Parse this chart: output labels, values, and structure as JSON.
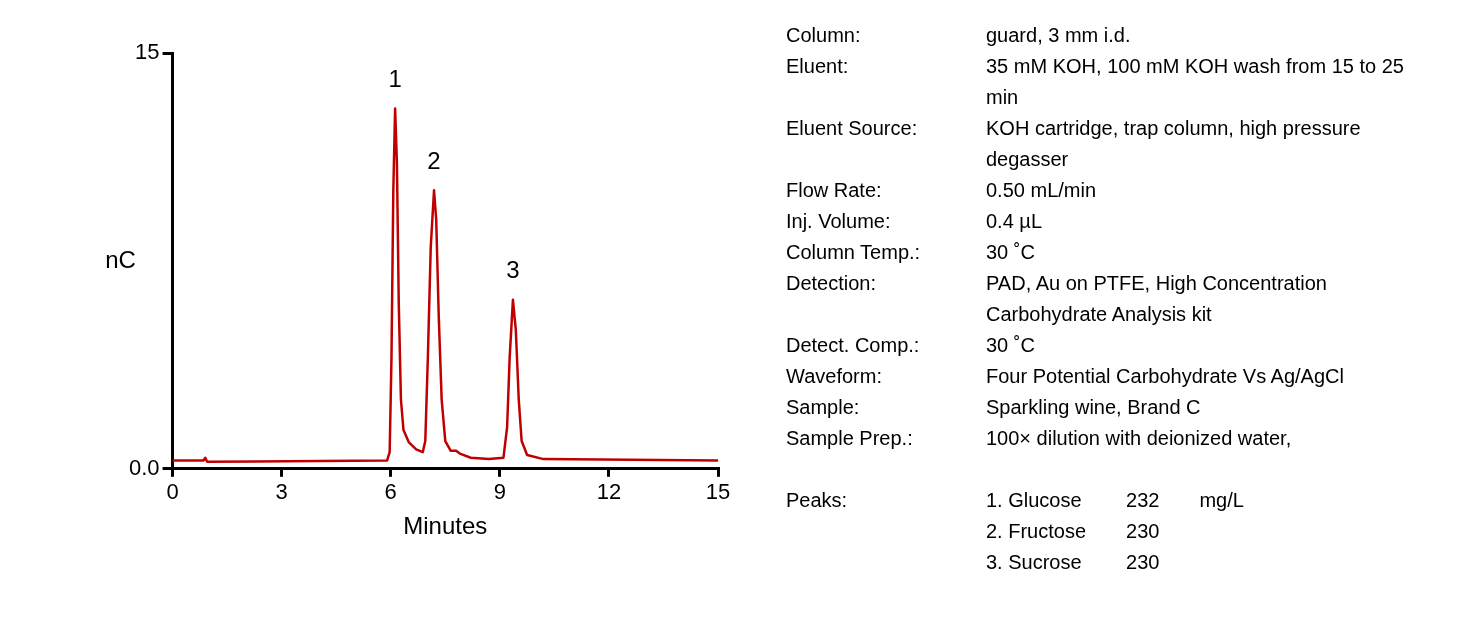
{
  "chart_data": {
    "type": "line",
    "xlabel": "Minutes",
    "ylabel": "nC",
    "xlim": [
      0,
      15
    ],
    "xticks": [
      0,
      3,
      6,
      9,
      12,
      15
    ],
    "ylim": [
      0,
      15
    ],
    "yticks": [
      {
        "value": 0,
        "label": "0.0"
      },
      15
    ],
    "grid": false,
    "legend": false,
    "marker": "none",
    "line_style": "solid",
    "series": [
      {
        "color": "#c00000",
        "x": [
          0,
          0.85,
          0.9,
          0.95,
          5.9,
          5.97,
          6.02,
          6.07,
          6.12,
          6.17,
          6.22,
          6.28,
          6.35,
          6.5,
          6.7,
          6.88,
          6.95,
          7.02,
          7.1,
          7.19,
          7.25,
          7.32,
          7.4,
          7.5,
          7.65,
          7.8,
          7.9,
          8.2,
          8.7,
          9.1,
          9.2,
          9.27,
          9.36,
          9.44,
          9.52,
          9.6,
          9.75,
          10.2,
          15
        ],
        "values": [
          0.3,
          0.3,
          0.4,
          0.25,
          0.3,
          0.6,
          4,
          10,
          13,
          11,
          6,
          2.5,
          1.4,
          0.95,
          0.7,
          0.6,
          1,
          4,
          8,
          10.05,
          9,
          5.5,
          2.5,
          1,
          0.65,
          0.65,
          0.55,
          0.4,
          0.35,
          0.4,
          1.5,
          4,
          6.1,
          5,
          2.5,
          1,
          0.5,
          0.35,
          0.3
        ]
      }
    ],
    "annotations": [
      {
        "text": "1",
        "x": 6.12,
        "y": 13
      },
      {
        "text": "2",
        "x": 7.19,
        "y": 10.05
      },
      {
        "text": "3",
        "x": 9.36,
        "y": 6.1
      },
      "Column:\tguard, 3 mm i.d.",
      "Eluent:\t35 mM KOH, 100 mM KOH wash from 15 to 25 min",
      "Eluent Source:\tKOH cartridge, trap column, high pressure degasser",
      "Flow Rate:\t0.50 mL/min",
      "Inj. Volume:\t0.4 µL",
      "Column Temp.:\t30 ˚C",
      "Detection:\tPAD, Au on PTFE, High Concentration Carbohydrate Analysis kit",
      "Detect. Comp.:\t30 ˚C",
      "Waveform:\tFour Potential Carbohydrate Vs Ag/AgCl",
      "Sample:\tSparkling wine, Brand C",
      "Sample Prep.:\t100× dilution with deionized water,",
      "Peaks:\t1. Glucose\t232\tmg/L",
      "\t2. Fructose\t230",
      "\t3. Sucrose\t230"
    ]
  }
}
